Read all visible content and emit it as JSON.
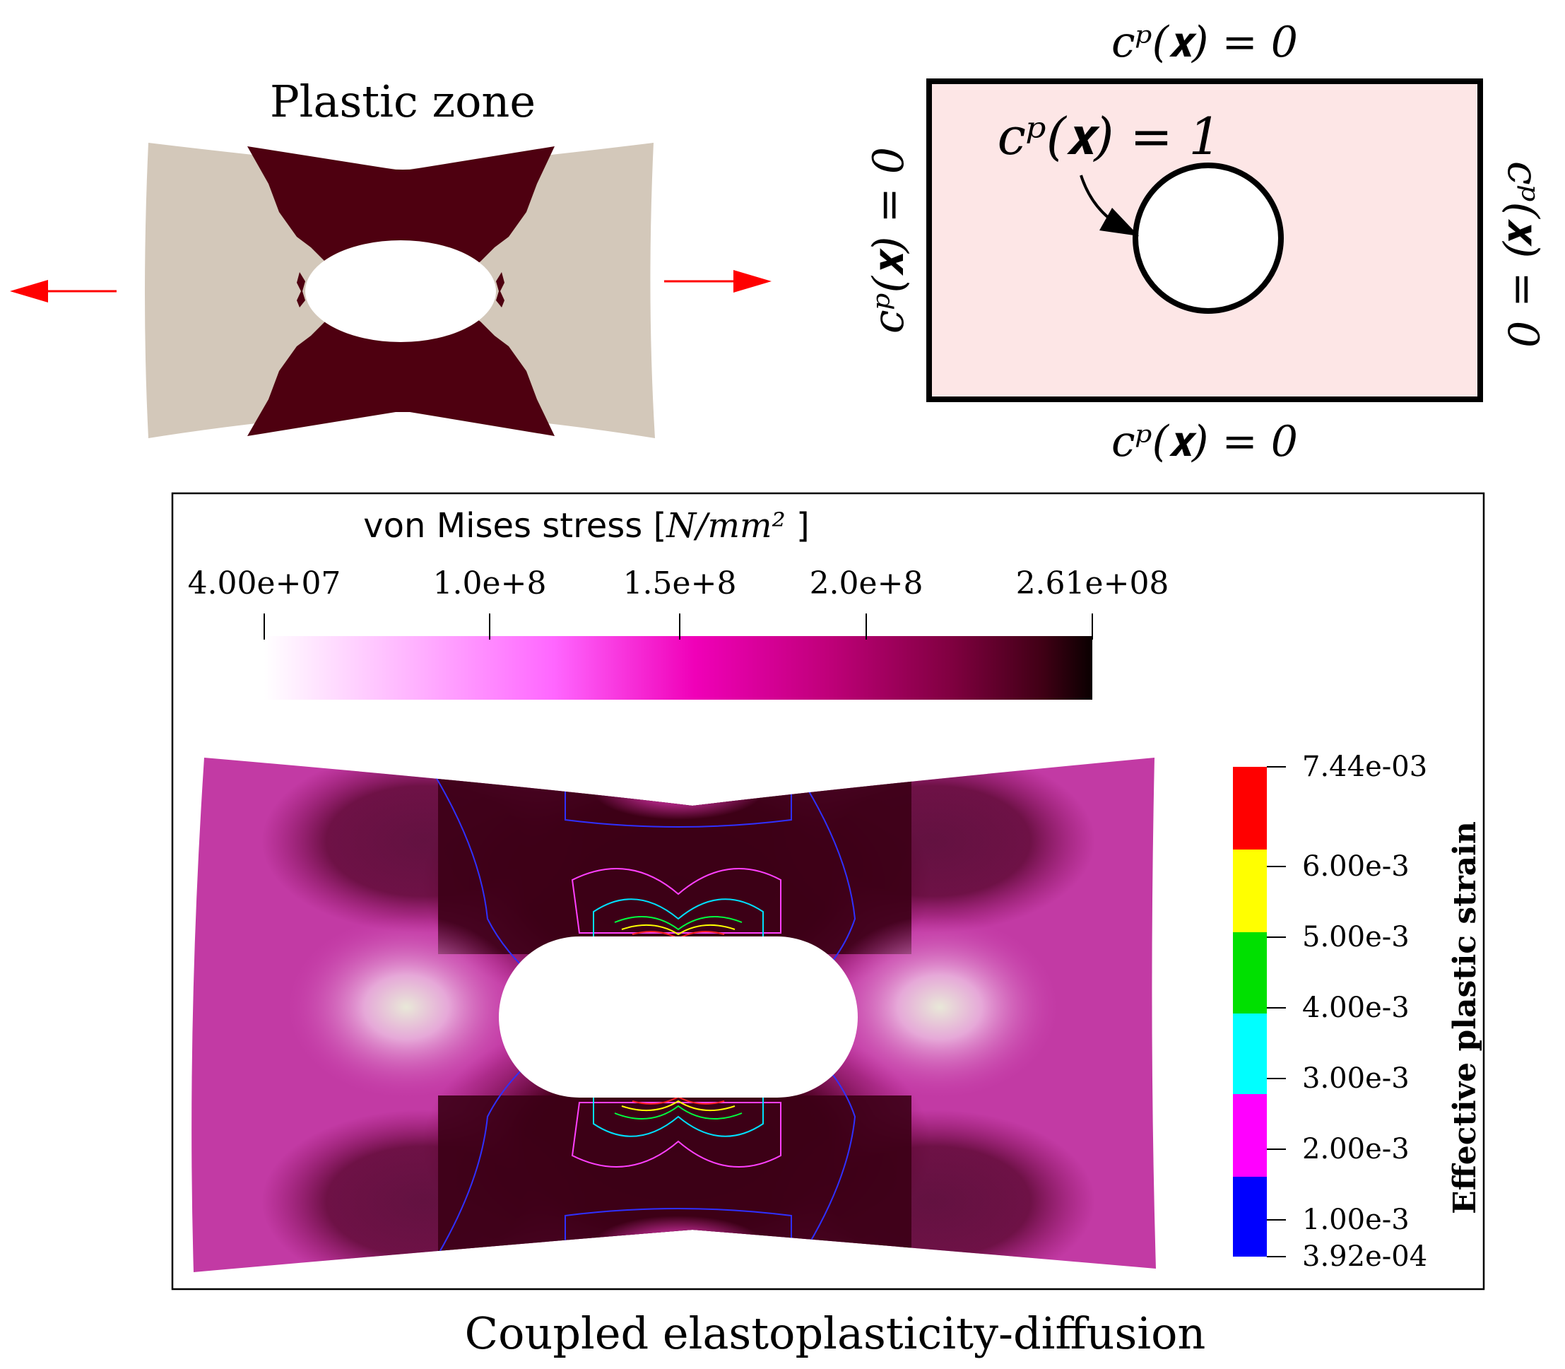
{
  "plastic_zone": {
    "title": "Plastic zone",
    "colors": {
      "specimen": "#d3c8ba",
      "plastic": "#4e0010",
      "arrow": "#ff0000"
    }
  },
  "boundary_diagram": {
    "top": "cᵖ(𝐱) = 0",
    "bottom": "cᵖ(𝐱) = 0",
    "left": "cᵖ(𝐱) = 0",
    "right": "cᵖ(𝐱) = 0",
    "hole": "cᵖ(𝐱) = 1",
    "colors": {
      "fill": "#fde6e6",
      "stroke": "#000000"
    }
  },
  "stress_panel": {
    "vm_title": "von Mises stress [",
    "vm_unit": "N/mm²",
    "vm_close": " ]",
    "vm_ticks": [
      "4.00e+07",
      "1.0e+8",
      "1.5e+8",
      "2.0e+8",
      "2.61e+08"
    ],
    "strain_title": "Effective plastic strain",
    "strain_ticks": [
      "7.44e-03",
      "6.00e-3",
      "5.00e-3",
      "4.00e-3",
      "3.00e-3",
      "2.00e-3",
      "1.00e-3",
      "3.92e-04"
    ],
    "strain_colors": [
      "#ff0000",
      "#ffff00",
      "#00e000",
      "#00ffff",
      "#ff00ff",
      "#0000ff"
    ]
  },
  "caption": "Coupled elastoplasticity-diffusion"
}
